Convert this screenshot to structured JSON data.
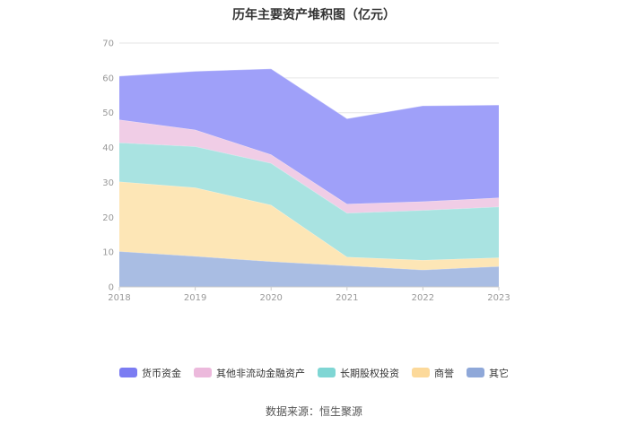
{
  "chart_data": {
    "type": "area",
    "stacked": true,
    "title": "历年主要资产堆积图（亿元）",
    "x": [
      "2018",
      "2019",
      "2020",
      "2021",
      "2022",
      "2023"
    ],
    "ylim": [
      0,
      70
    ],
    "yticks": [
      0,
      10,
      20,
      30,
      40,
      50,
      60,
      70
    ],
    "grid": true,
    "legend_position": "bottom",
    "series": [
      {
        "name": "其它",
        "color": "#a9bde3",
        "values": [
          10.2,
          8.8,
          7.3,
          6.1,
          4.9,
          5.9
        ]
      },
      {
        "name": "商誉",
        "color": "#fde6b6",
        "values": [
          20.0,
          19.7,
          16.2,
          2.5,
          2.8,
          2.5
        ]
      },
      {
        "name": "长期股权投资",
        "color": "#a9e3e1",
        "values": [
          11.2,
          11.8,
          12.0,
          12.6,
          14.3,
          14.6
        ]
      },
      {
        "name": "其他非流动金融资产",
        "color": "#f0cde6",
        "values": [
          6.6,
          4.8,
          2.5,
          2.6,
          2.5,
          2.6
        ]
      },
      {
        "name": "货币资金",
        "color": "#9fa0f9",
        "values": [
          12.5,
          16.8,
          24.6,
          24.5,
          27.5,
          26.6
        ]
      }
    ],
    "legend_order": [
      "货币资金",
      "其他非流动金融资产",
      "长期股权投资",
      "商誉",
      "其它"
    ],
    "legend_colors": {
      "货币资金": "#7b7cf2",
      "其他非流动金融资产": "#ecb9dc",
      "长期股权投资": "#7fd6d4",
      "商誉": "#fcd99a",
      "其它": "#8fa8d9"
    }
  },
  "footer": {
    "source": "数据来源：恒生聚源"
  }
}
